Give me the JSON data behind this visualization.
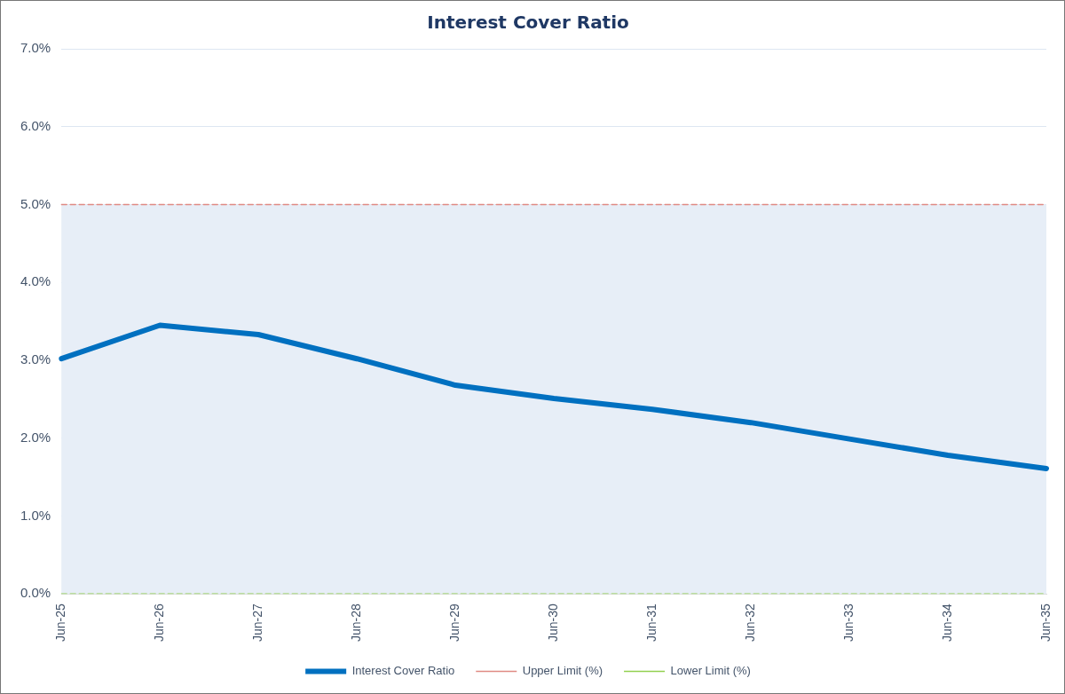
{
  "chart_data": {
    "type": "line",
    "title": "Interest Cover Ratio",
    "categories": [
      "Jun-25",
      "Jun-26",
      "Jun-27",
      "Jun-28",
      "Jun-29",
      "Jun-30",
      "Jun-31",
      "Jun-32",
      "Jun-33",
      "Jun-34",
      "Jun-35"
    ],
    "series": [
      {
        "name": "Interest Cover Ratio",
        "color": "#0070c0",
        "line_style": "solid",
        "values": [
          3.02,
          3.45,
          3.33,
          3.02,
          2.68,
          2.51,
          2.37,
          2.2,
          1.99,
          1.78,
          1.61
        ]
      },
      {
        "name": "Upper Limit (%)",
        "color": "#e08a84",
        "line_style": "dashed",
        "values": [
          5,
          5,
          5,
          5,
          5,
          5,
          5,
          5,
          5,
          5,
          5
        ]
      },
      {
        "name": "Lower Limit (%)",
        "color": "#92d050",
        "line_style": "dashed",
        "values": [
          0,
          0,
          0,
          0,
          0,
          0,
          0,
          0,
          0,
          0,
          0
        ]
      }
    ],
    "bands": [
      {
        "axis": "y",
        "from": 0,
        "to": 5,
        "color": "#e7eef7"
      }
    ],
    "ylim": [
      0,
      7
    ],
    "yticks": [
      {
        "value": 0,
        "label": "0.0%"
      },
      {
        "value": 1,
        "label": "1.0%"
      },
      {
        "value": 2,
        "label": "2.0%"
      },
      {
        "value": 3,
        "label": "3.0%"
      },
      {
        "value": 4,
        "label": "4.0%"
      },
      {
        "value": 5,
        "label": "5.0%"
      },
      {
        "value": 6,
        "label": "6.0%"
      },
      {
        "value": 7,
        "label": "7.0%"
      }
    ],
    "grid": "y",
    "legend": "bottom",
    "marker": "none"
  }
}
